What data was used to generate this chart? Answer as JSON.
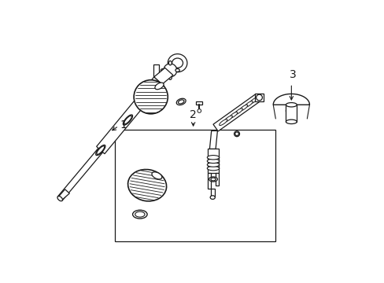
{
  "background_color": "#ffffff",
  "line_color": "#1a1a1a",
  "label_1": "1",
  "label_2": "2",
  "label_3": "3",
  "fig_width": 4.89,
  "fig_height": 3.6,
  "dpi": 100
}
